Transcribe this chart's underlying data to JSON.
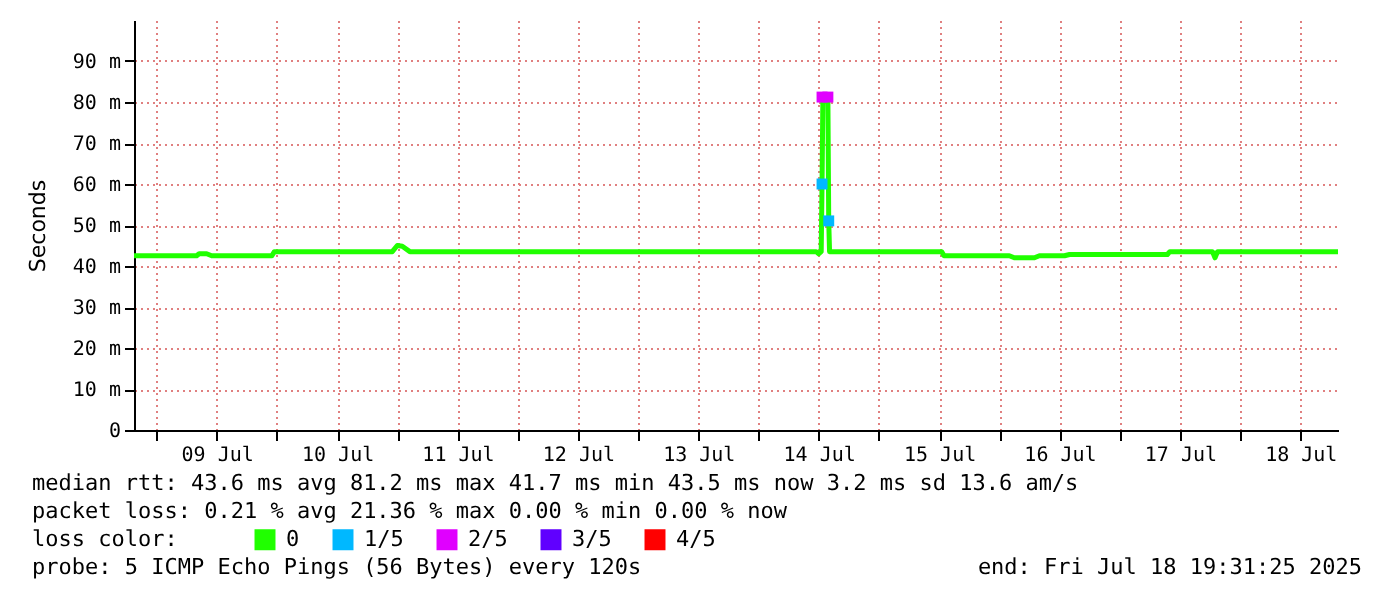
{
  "chart_data": {
    "type": "line",
    "ylabel": "Seconds",
    "xlim": [
      "2025-07-08T19:31",
      "2025-07-18T19:31"
    ],
    "xticks": [
      {
        "value": "2025-07-09T00:00",
        "label": null
      },
      {
        "value": "2025-07-09T12:00",
        "label": "09 Jul"
      },
      {
        "value": "2025-07-10T00:00",
        "label": null
      },
      {
        "value": "2025-07-10T12:00",
        "label": "10 Jul"
      },
      {
        "value": "2025-07-11T00:00",
        "label": null
      },
      {
        "value": "2025-07-11T12:00",
        "label": "11 Jul"
      },
      {
        "value": "2025-07-12T00:00",
        "label": null
      },
      {
        "value": "2025-07-12T12:00",
        "label": "12 Jul"
      },
      {
        "value": "2025-07-13T00:00",
        "label": null
      },
      {
        "value": "2025-07-13T12:00",
        "label": "13 Jul"
      },
      {
        "value": "2025-07-14T00:00",
        "label": null
      },
      {
        "value": "2025-07-14T12:00",
        "label": "14 Jul"
      },
      {
        "value": "2025-07-15T00:00",
        "label": null
      },
      {
        "value": "2025-07-15T12:00",
        "label": "15 Jul"
      },
      {
        "value": "2025-07-16T00:00",
        "label": null
      },
      {
        "value": "2025-07-16T12:00",
        "label": "16 Jul"
      },
      {
        "value": "2025-07-17T00:00",
        "label": null
      },
      {
        "value": "2025-07-17T12:00",
        "label": "17 Jul"
      },
      {
        "value": "2025-07-18T00:00",
        "label": null
      },
      {
        "value": "2025-07-18T12:00",
        "label": "18 Jul"
      }
    ],
    "ylim": [
      0,
      100
    ],
    "yticks": [
      0,
      {
        "value": 10,
        "label": "10 m"
      },
      {
        "value": 20,
        "label": "20 m"
      },
      {
        "value": 30,
        "label": "30 m"
      },
      {
        "value": 40,
        "label": "40 m"
      },
      {
        "value": 50,
        "label": "50 m"
      },
      {
        "value": 60,
        "label": "60 m"
      },
      {
        "value": 70,
        "label": "70 m"
      },
      {
        "value": 80,
        "label": "80 m"
      },
      {
        "value": 90,
        "label": "90 m"
      }
    ],
    "grid": true,
    "legend": "bottom",
    "line_style": "solid",
    "series": [
      {
        "name": "0",
        "color": "#20ff00",
        "x": [
          "2025-07-08T19:31",
          "2025-07-09T08:00",
          "2025-07-09T08:30",
          "2025-07-09T10:00",
          "2025-07-09T11:00",
          "2025-07-09T23:00",
          "2025-07-09T23:30",
          "2025-07-10T23:00",
          "2025-07-11T00:00",
          "2025-07-11T01:00",
          "2025-07-11T02:30",
          "2025-07-14T11:30",
          "2025-07-14T12:00",
          "2025-07-14T12:30",
          "2025-07-14T12:40",
          "2025-07-14T12:50",
          "2025-07-14T13:50",
          "2025-07-14T14:00",
          "2025-07-14T14:10",
          "2025-07-15T12:30",
          "2025-07-15T13:00",
          "2025-07-16T02:00",
          "2025-07-16T03:00",
          "2025-07-16T07:00",
          "2025-07-16T08:00",
          "2025-07-16T13:00",
          "2025-07-16T14:00",
          "2025-07-17T09:30",
          "2025-07-17T10:00",
          "2025-07-17T18:30",
          "2025-07-17T19:00",
          "2025-07-17T19:30",
          "2025-07-18T19:31"
        ],
        "values": [
          42.5,
          42.5,
          43,
          43,
          42.5,
          42.5,
          43.5,
          43.5,
          45,
          44.8,
          43.5,
          43.5,
          43,
          43.5,
          60,
          81,
          81,
          51,
          43.5,
          43.5,
          42.5,
          42.5,
          42,
          42,
          42.5,
          42.5,
          42.8,
          42.8,
          43.5,
          43.5,
          42,
          43.5,
          43.5
        ]
      },
      {
        "name": "1/5",
        "color": "#00b8ff",
        "type": "scatter",
        "marker": "square",
        "x": [
          "2025-07-14T12:40",
          "2025-07-14T14:00"
        ],
        "values": [
          60,
          51
        ]
      },
      {
        "name": "2/5",
        "color": "#e000ff",
        "type": "scatter",
        "marker": "square",
        "x": [
          "2025-07-14T12:40",
          "2025-07-14T13:50"
        ],
        "values": [
          81.2,
          81.2
        ]
      },
      {
        "name": "3/5",
        "color": "#6000ff",
        "type": "scatter"
      },
      {
        "name": "4/5",
        "color": "#ff0000",
        "type": "scatter"
      }
    ],
    "annotations": [
      "median rtt:  43.6 ms avg  81.2 ms max  41.7 ms min  43.5 ms now  3.2 ms sd  13.6   am/s",
      "packet loss: 0.21 % avg  21.36 % max  0.00 % min  0.00 % now",
      "loss color:",
      "probe:       5 ICMP Echo Pings (56 Bytes) every 120s",
      "end: Fri Jul 18 19:31:25 2025"
    ]
  }
}
